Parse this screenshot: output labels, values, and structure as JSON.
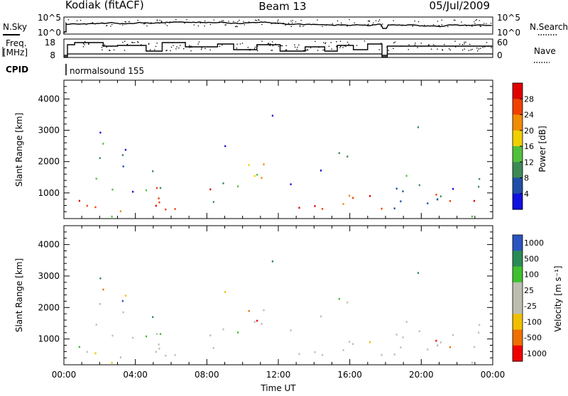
{
  "header": {
    "site": "Kodiak (fitACF)",
    "beam": "Beam 13",
    "date": "05/Jul/2009"
  },
  "top_panels": {
    "nsky_label": "N.Sky",
    "nsky_ticks": [
      "10^5",
      "10^0"
    ],
    "nsearch_label": "N.Search",
    "nsearch_ticks": [
      "10^5",
      "10^0"
    ],
    "freq_label_1": "Freq.",
    "freq_label_2": "[MHz]",
    "freq_ticks": [
      "18",
      "8"
    ],
    "nave_label": "Nave",
    "nave_ticks": [
      "60",
      "0"
    ],
    "cpid_label": "CPID",
    "cpid_value": "normalsound 155"
  },
  "colors": {
    "power_scale": [
      "#1010e0",
      "#1f4fa8",
      "#3c8a56",
      "#52c03c",
      "#f0d000",
      "#f08c00",
      "#f04000",
      "#e00000"
    ],
    "velocity_scale": [
      "#ee0000",
      "#ee7000",
      "#f0c000",
      "#bdbdb0",
      "#bdbdb0",
      "#40c030",
      "#2a8a55",
      "#2a55c0"
    ]
  },
  "chart_data": [
    {
      "type": "heatmap",
      "title": "Power",
      "ylabel": "Slant Range [km]",
      "xlabel": "Time UT",
      "y_ticks": [
        1000,
        2000,
        3000,
        4000
      ],
      "x_ticks": [
        "00:00",
        "04:00",
        "08:00",
        "12:00",
        "16:00",
        "20:00",
        "00:00"
      ],
      "ylim": [
        180,
        4600
      ],
      "xlim_hours": [
        0,
        24
      ],
      "colorbar": {
        "label": "Power [dB]",
        "ticks": [
          4,
          8,
          12,
          16,
          20,
          24,
          28
        ],
        "range": [
          0,
          32
        ]
      }
    },
    {
      "type": "heatmap",
      "title": "Velocity",
      "ylabel": "Slant Range [km]",
      "xlabel": "Time UT",
      "y_ticks": [
        1000,
        2000,
        3000,
        4000
      ],
      "x_ticks": [
        "00:00",
        "04:00",
        "08:00",
        "12:00",
        "16:00",
        "20:00",
        "00:00"
      ],
      "ylim": [
        180,
        4600
      ],
      "xlim_hours": [
        0,
        24
      ],
      "colorbar": {
        "label": "Velocity [m s⁻¹]",
        "ticks": [
          1000,
          500,
          100,
          25,
          -25,
          -100,
          -500,
          -1000
        ]
      }
    }
  ]
}
